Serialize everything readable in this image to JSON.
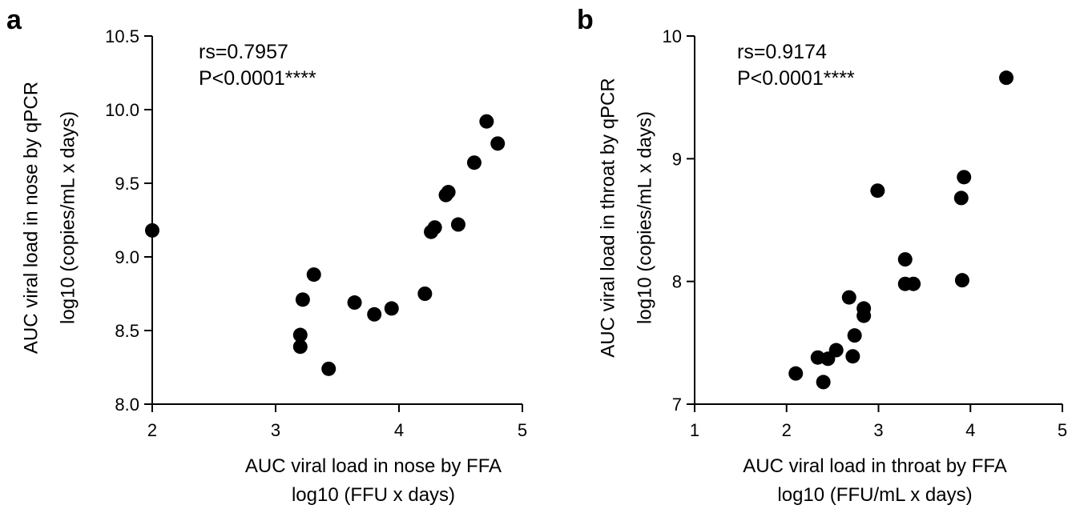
{
  "chart_data": [
    {
      "type": "scatter",
      "panel_letter": "a",
      "xlabel": [
        "AUC viral load in nose by FFA",
        "log10 (FFU x days)"
      ],
      "ylabel": [
        "AUC viral load in nose by qPCR",
        "log10 (copies/mL x days)"
      ],
      "xlim": [
        2,
        5
      ],
      "ylim": [
        8.0,
        10.5
      ],
      "xticks": [
        "2",
        "3",
        "4",
        "5"
      ],
      "yticks": [
        "8.0",
        "8.5",
        "9.0",
        "9.5",
        "10.0",
        "10.5"
      ],
      "annotations": [
        "rs=0.7957",
        "P<0.0001****"
      ],
      "x": [
        2.0,
        3.2,
        3.2,
        3.22,
        3.31,
        3.43,
        3.64,
        3.8,
        3.94,
        4.21,
        4.26,
        4.29,
        4.38,
        4.4,
        4.48,
        4.61,
        4.71,
        4.8
      ],
      "y": [
        9.18,
        8.47,
        8.39,
        8.71,
        8.88,
        8.24,
        8.69,
        8.61,
        8.65,
        8.75,
        9.17,
        9.2,
        9.42,
        9.44,
        9.22,
        9.64,
        9.92,
        9.77
      ],
      "grid": false,
      "color": "#000000"
    },
    {
      "type": "scatter",
      "panel_letter": "b",
      "xlabel": [
        "AUC viral load in throat by FFA",
        "log10 (FFU/mL x days)"
      ],
      "ylabel": [
        "AUC viral load in throat by qPCR",
        "log10 (copies/mL x days)"
      ],
      "xlim": [
        1,
        5
      ],
      "ylim": [
        7,
        10
      ],
      "xticks": [
        "1",
        "2",
        "3",
        "4",
        "5"
      ],
      "yticks": [
        "7",
        "8",
        "9",
        "10"
      ],
      "annotations": [
        "rs=0.9174",
        "P<0.0001****"
      ],
      "x": [
        2.1,
        2.34,
        2.4,
        2.45,
        2.54,
        2.68,
        2.72,
        2.74,
        2.84,
        2.84,
        2.99,
        3.29,
        3.29,
        3.38,
        3.9,
        3.91,
        3.93,
        4.39
      ],
      "y": [
        7.25,
        7.38,
        7.18,
        7.37,
        7.44,
        7.87,
        7.39,
        7.56,
        7.78,
        7.72,
        8.74,
        8.18,
        7.98,
        7.98,
        8.68,
        8.01,
        8.85,
        9.66
      ],
      "grid": false,
      "color": "#000000"
    }
  ]
}
